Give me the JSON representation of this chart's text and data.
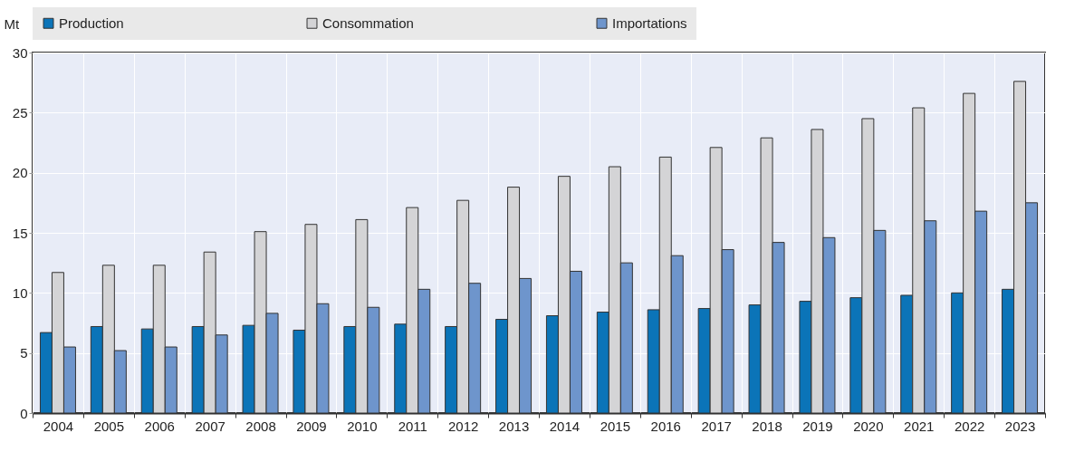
{
  "chart_data": {
    "type": "bar",
    "ylabel": "Mt",
    "categories": [
      "2004",
      "2005",
      "2006",
      "2007",
      "2008",
      "2009",
      "2010",
      "2011",
      "2012",
      "2013",
      "2014",
      "2015",
      "2016",
      "2017",
      "2018",
      "2019",
      "2020",
      "2021",
      "2022",
      "2023"
    ],
    "series": [
      {
        "name": "Production",
        "color": "#0b74b8",
        "values": [
          6.7,
          7.2,
          7.0,
          7.2,
          7.3,
          6.9,
          7.2,
          7.4,
          7.2,
          7.8,
          8.1,
          8.4,
          8.6,
          8.7,
          9.0,
          9.3,
          9.6,
          9.8,
          10.0,
          10.3
        ]
      },
      {
        "name": "Consommation",
        "color": "#d4d4d6",
        "values": [
          11.7,
          12.3,
          12.3,
          13.4,
          15.1,
          15.7,
          16.1,
          17.1,
          17.7,
          18.8,
          19.7,
          20.5,
          21.3,
          22.1,
          22.9,
          23.6,
          24.5,
          25.4,
          26.6,
          27.6
        ]
      },
      {
        "name": "Importations",
        "color": "#6e95cc",
        "values": [
          5.5,
          5.2,
          5.5,
          6.5,
          8.3,
          9.1,
          8.8,
          10.3,
          10.8,
          11.2,
          11.8,
          12.5,
          13.1,
          13.6,
          14.2,
          14.6,
          15.2,
          16.0,
          16.8,
          17.5
        ]
      }
    ],
    "ylim": [
      0,
      30
    ],
    "yticks": [
      0,
      5,
      10,
      15,
      20,
      25,
      30
    ],
    "grid": true,
    "legend": "top"
  }
}
